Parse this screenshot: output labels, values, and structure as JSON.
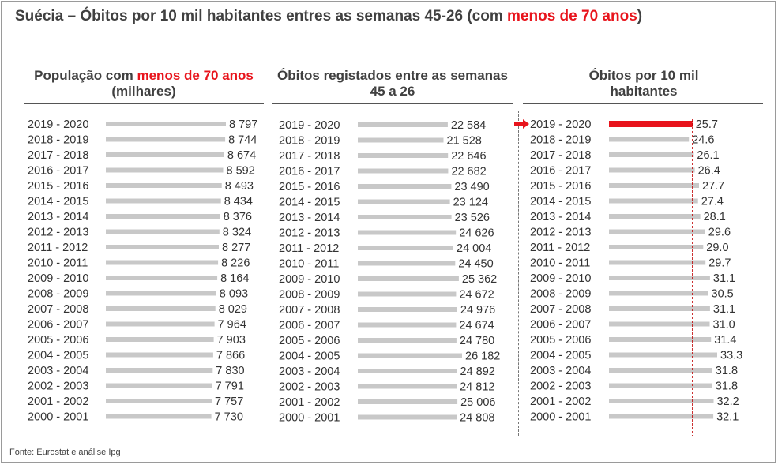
{
  "title": {
    "part1": "Suécia – Óbitos por 10 mil habitantes entres as semanas 45-26 (com ",
    "highlight": "menos de 70 anos",
    "part2": ")"
  },
  "footer": "Fonte: Eurostat e análise Ipg",
  "colors": {
    "bar": "#c8c8c8",
    "highlight": "#e8141c",
    "text": "#333333",
    "refline": "#c00000"
  },
  "chart_data": [
    {
      "type": "bar",
      "orientation": "horizontal",
      "title_parts": [
        "População com ",
        "menos de 70 anos",
        " (milhares)"
      ],
      "categories": [
        "2019 - 2020",
        "2018 - 2019",
        "2017 - 2018",
        "2016 - 2017",
        "2015 - 2016",
        "2014 - 2015",
        "2013 - 2014",
        "2012 - 2013",
        "2011 - 2012",
        "2010 - 2011",
        "2009 - 2010",
        "2008 - 2009",
        "2007 - 2008",
        "2006 - 2007",
        "2005 - 2006",
        "2004 - 2005",
        "2003 - 2004",
        "2002 - 2003",
        "2001 - 2002",
        "2000 - 2001"
      ],
      "values": [
        8797,
        8744,
        8674,
        8592,
        8493,
        8434,
        8376,
        8324,
        8277,
        8226,
        8164,
        8093,
        8029,
        7964,
        7903,
        7866,
        7830,
        7791,
        7757,
        7730
      ],
      "labels": [
        "8 797",
        "8 744",
        "8 674",
        "8 592",
        "8 493",
        "8 434",
        "8 376",
        "8 324",
        "8 277",
        "8 226",
        "8 164",
        "8 093",
        "8 029",
        "7 964",
        "7 903",
        "7 866",
        "7 830",
        "7 791",
        "7 757",
        "7 730"
      ],
      "xlim": [
        0,
        8797
      ]
    },
    {
      "type": "bar",
      "orientation": "horizontal",
      "title_parts": [
        "Óbitos registados entre as semanas 45 a 26"
      ],
      "categories": [
        "2019 - 2020",
        "2018 - 2019",
        "2017 - 2018",
        "2016 - 2017",
        "2015 - 2016",
        "2014 - 2015",
        "2013 - 2014",
        "2012 - 2013",
        "2011 - 2012",
        "2010 - 2011",
        "2009 - 2010",
        "2008 - 2009",
        "2007 - 2008",
        "2006 - 2007",
        "2005 - 2006",
        "2004 - 2005",
        "2003 - 2004",
        "2002 - 2003",
        "2001 - 2002",
        "2000 - 2001"
      ],
      "values": [
        22584,
        21528,
        22646,
        22682,
        23490,
        23124,
        23526,
        24626,
        24004,
        24450,
        25362,
        24672,
        24976,
        24674,
        24780,
        26182,
        24892,
        24812,
        25006,
        24808
      ],
      "labels": [
        "22 584",
        "21 528",
        "22 646",
        "22 682",
        "23 490",
        "23 124",
        "23 526",
        "24 626",
        "24 004",
        "24 450",
        "25 362",
        "24 672",
        "24 976",
        "24 674",
        "24 780",
        "26 182",
        "24 892",
        "24 812",
        "25 006",
        "24 808"
      ],
      "xlim": [
        0,
        26182
      ]
    },
    {
      "type": "bar",
      "orientation": "horizontal",
      "title_parts": [
        "Óbitos por 10 mil habitantes"
      ],
      "categories": [
        "2019 - 2020",
        "2018 - 2019",
        "2017 - 2018",
        "2016 - 2017",
        "2015 - 2016",
        "2014 - 2015",
        "2013 - 2014",
        "2012 - 2013",
        "2011 - 2012",
        "2010 - 2011",
        "2009 - 2010",
        "2008 - 2009",
        "2007 - 2008",
        "2006 - 2007",
        "2005 - 2006",
        "2004 - 2005",
        "2003 - 2004",
        "2002 - 2003",
        "2001 - 2002",
        "2000 - 2001"
      ],
      "values": [
        25.7,
        24.6,
        26.1,
        26.4,
        27.7,
        27.4,
        28.1,
        29.6,
        29.0,
        29.7,
        31.1,
        30.5,
        31.1,
        31.0,
        31.4,
        33.3,
        31.8,
        31.8,
        32.2,
        32.1
      ],
      "labels": [
        "25.7",
        "24.6",
        "26.1",
        "26.4",
        "27.7",
        "27.4",
        "28.1",
        "29.6",
        "29.0",
        "29.7",
        "31.1",
        "30.5",
        "31.1",
        "31.0",
        "31.4",
        "33.3",
        "31.8",
        "31.8",
        "32.2",
        "32.1"
      ],
      "highlight_index": 0,
      "reference_line": 25.7,
      "xlim": [
        0,
        33.3
      ]
    }
  ]
}
